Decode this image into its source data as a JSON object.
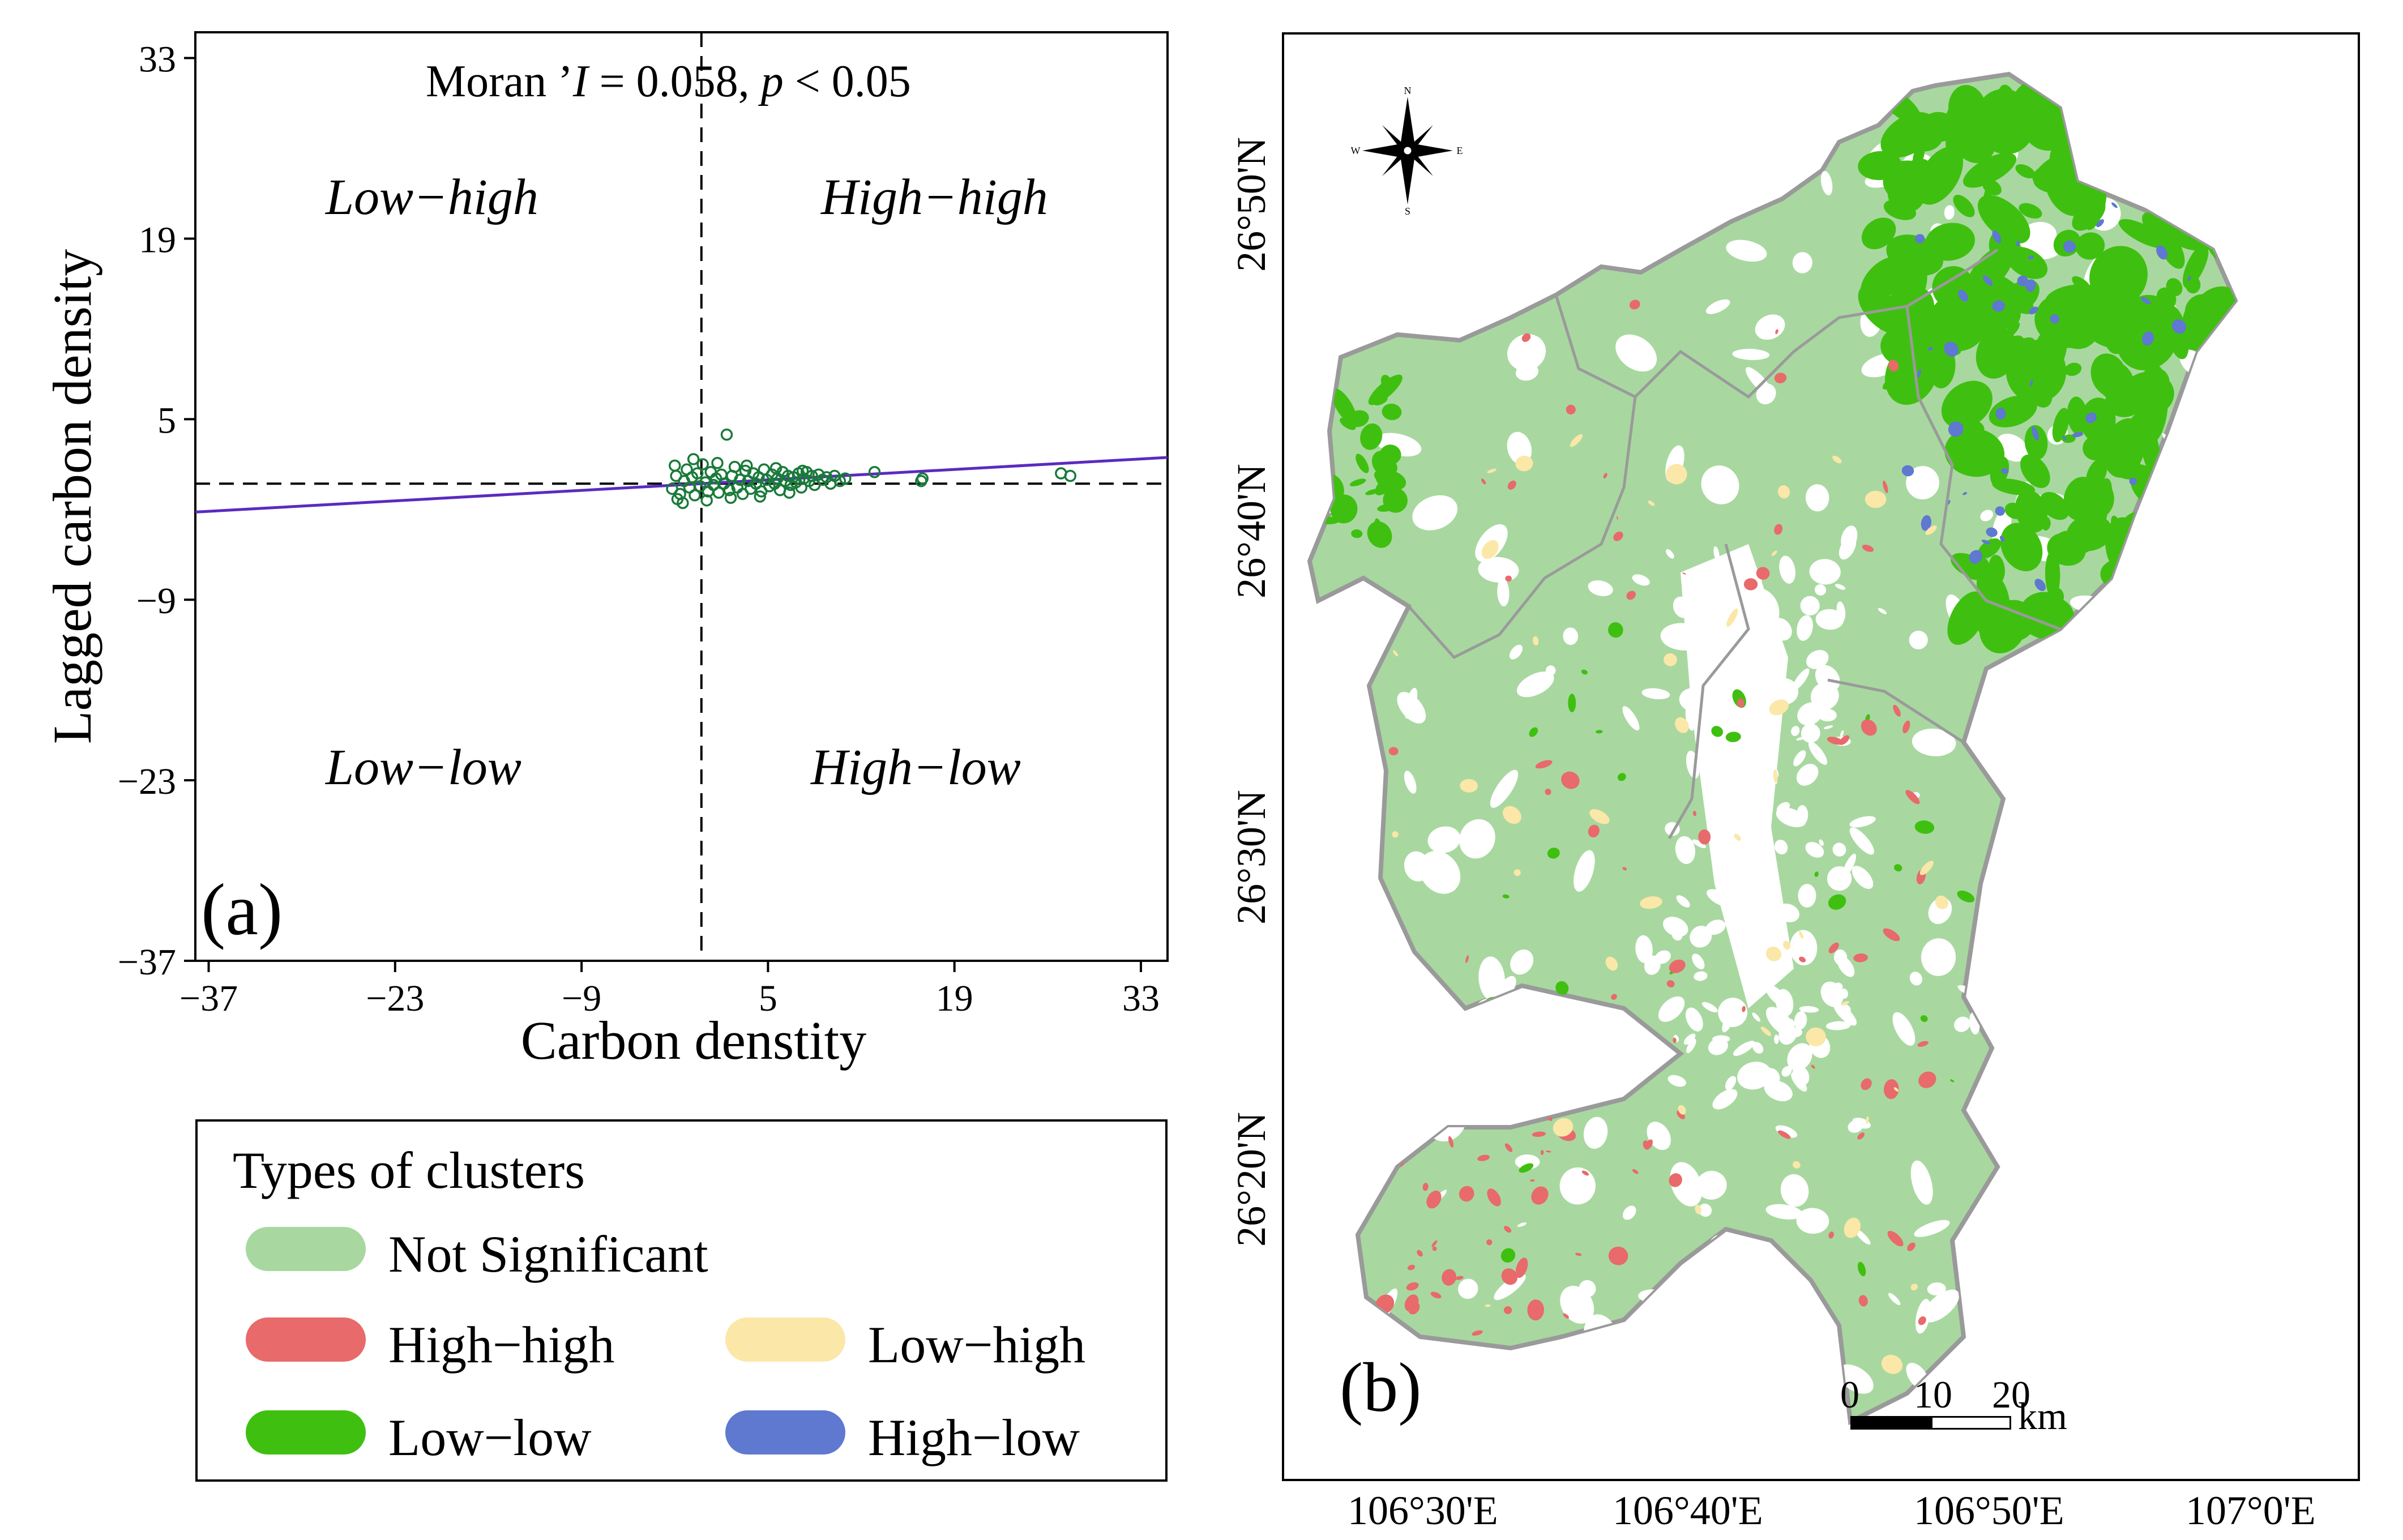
{
  "scatter": {
    "stat_prefix": "Moran ’",
    "stat_symbol": "I",
    "stat_value": " = 0.058, ",
    "p_symbol": "p",
    "p_rel": " <  0.05",
    "quadrant_labels": [
      "Low−high",
      "High−high",
      "Low−low",
      "High−low"
    ],
    "panel_tag": "(a)"
  },
  "chart_data": {
    "type": "scatter",
    "title": "Moran ’I = 0.058, p <  0.05",
    "xlabel": "Carbon denstity",
    "ylabel": "Lagged carbon density",
    "xlim": [
      -38,
      35
    ],
    "ylim": [
      -37,
      35
    ],
    "xticks": [
      -37,
      -23,
      -9,
      5,
      19,
      33
    ],
    "yticks": [
      33,
      19,
      5,
      -9,
      -23,
      -37
    ],
    "reference_lines": {
      "x": 0,
      "y": 0
    },
    "regression": {
      "slope": 0.058,
      "intercept": 0
    },
    "series": [
      {
        "name": "observations",
        "color": "#1a7a3a",
        "points": [
          [
            -2.2,
            -0.4
          ],
          [
            -1.9,
            0.6
          ],
          [
            -1.6,
            -0.8
          ],
          [
            -1.3,
            0.2
          ],
          [
            -1.1,
            1.1
          ],
          [
            -0.9,
            -0.3
          ],
          [
            -0.7,
            0.5
          ],
          [
            -0.5,
            -0.9
          ],
          [
            -0.3,
            0.8
          ],
          [
            -0.1,
            -0.2
          ],
          [
            0.1,
            1.5
          ],
          [
            0.3,
            0.1
          ],
          [
            0.5,
            -0.6
          ],
          [
            0.7,
            0.9
          ],
          [
            0.9,
            -0.1
          ],
          [
            1.1,
            0.4
          ],
          [
            1.3,
            -0.7
          ],
          [
            1.5,
            0.7
          ],
          [
            1.7,
            0.0
          ],
          [
            1.9,
            3.8
          ],
          [
            2.1,
            -0.5
          ],
          [
            2.3,
            0.6
          ],
          [
            2.5,
            1.3
          ],
          [
            2.7,
            -0.3
          ],
          [
            2.9,
            0.3
          ],
          [
            3.1,
            -0.8
          ],
          [
            3.3,
            1.0
          ],
          [
            3.5,
            0.2
          ],
          [
            3.7,
            -0.4
          ],
          [
            3.9,
            0.8
          ],
          [
            4.1,
            0.0
          ],
          [
            4.3,
            0.5
          ],
          [
            4.5,
            -0.6
          ],
          [
            4.7,
            1.1
          ],
          [
            4.9,
            0.3
          ],
          [
            5.1,
            -0.2
          ],
          [
            5.3,
            0.7
          ],
          [
            5.5,
            0.0
          ],
          [
            5.7,
            0.4
          ],
          [
            5.9,
            -0.5
          ],
          [
            6.1,
            0.9
          ],
          [
            6.3,
            0.2
          ],
          [
            6.5,
            0.6
          ],
          [
            6.7,
            -0.1
          ],
          [
            6.9,
            0.5
          ],
          [
            7.1,
            0.1
          ],
          [
            7.3,
            0.8
          ],
          [
            7.5,
            -0.3
          ],
          [
            7.7,
            0.4
          ],
          [
            7.9,
            0.9
          ],
          [
            8.1,
            0.2
          ],
          [
            8.3,
            0.6
          ],
          [
            8.5,
            -0.1
          ],
          [
            8.8,
            0.7
          ],
          [
            9.1,
            0.3
          ],
          [
            9.4,
            0.5
          ],
          [
            9.7,
            0.0
          ],
          [
            10.0,
            0.6
          ],
          [
            10.4,
            0.2
          ],
          [
            10.8,
            0.4
          ],
          [
            -1.8,
            -1.2
          ],
          [
            -0.6,
            1.9
          ],
          [
            0.4,
            -1.3
          ],
          [
            1.2,
            1.6
          ],
          [
            2.2,
            -1.1
          ],
          [
            3.4,
            1.4
          ],
          [
            4.4,
            -1.0
          ],
          [
            5.6,
            1.2
          ],
          [
            6.6,
            -0.7
          ],
          [
            7.6,
            1.0
          ],
          [
            -2.0,
            1.4
          ],
          [
            -1.4,
            -1.5
          ],
          [
            13.0,
            0.9
          ],
          [
            16.5,
            0.2
          ],
          [
            16.6,
            0.4
          ],
          [
            27.0,
            0.8
          ],
          [
            27.7,
            0.6
          ]
        ]
      }
    ]
  },
  "legend": {
    "title": "Types of clusters",
    "items": [
      {
        "label": "Not Significant",
        "color": "#a8d8a0"
      },
      {
        "label": "High−high",
        "color": "#e86a6a"
      },
      {
        "label": "Low−high",
        "color": "#fbe7a8"
      },
      {
        "label": "Low−low",
        "color": "#3fc010"
      },
      {
        "label": "High−low",
        "color": "#5f78d0"
      }
    ]
  },
  "map": {
    "panel_tag": "(b)",
    "lat_labels": [
      "26°50'N",
      "26°40'N",
      "26°30'N",
      "26°20'N"
    ],
    "lon_labels": [
      "106°30'E",
      "106°40'E",
      "106°50'E",
      "107°0'E"
    ],
    "compass": {
      "n": "N",
      "s": "S",
      "e": "E",
      "w": "W"
    },
    "scalebar": {
      "ticks": [
        "0",
        "10",
        "20"
      ],
      "unit": "km"
    },
    "colors": {
      "boundary": "#9a9a9a",
      "not_significant": "#a8d8a0",
      "high_high": "#e86a6a",
      "low_high": "#fbe7a8",
      "low_low": "#3fc010",
      "high_low": "#5f78d0"
    }
  }
}
